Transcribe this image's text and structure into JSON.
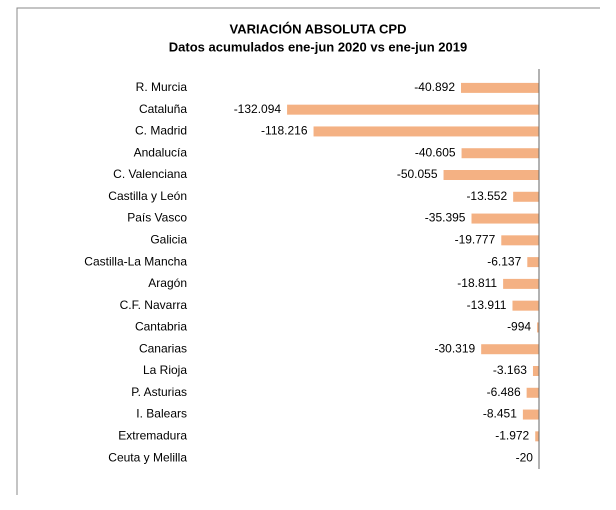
{
  "chart_data": {
    "type": "bar",
    "orientation": "horizontal",
    "title": "VARIACIÓN ABSOLUTA CPD",
    "subtitle": "Datos acumulados ene-jun 2020 vs ene-jun 2019",
    "categories": [
      "R. Murcia",
      "Cataluña",
      "C. Madrid",
      "Andalucía",
      "C. Valenciana",
      "Castilla y León",
      "País Vasco",
      "Galicia",
      "Castilla-La Mancha",
      "Aragón",
      "C.F. Navarra",
      "Cantabria",
      "Canarias",
      "La Rioja",
      "P. Asturias",
      "I. Balears",
      "Extremadura",
      "Ceuta y Melilla"
    ],
    "values": [
      -40892,
      -132094,
      -118216,
      -40605,
      -50055,
      -13552,
      -35395,
      -19777,
      -6137,
      -18811,
      -13911,
      -994,
      -30319,
      -3163,
      -6486,
      -8451,
      -1972,
      -20
    ],
    "value_labels": [
      "-40.892",
      "-132.094",
      "-118.216",
      "-40.605",
      "-50.055",
      "-13.552",
      "-35.395",
      "-19.777",
      "-6.137",
      "-18.811",
      "-13.911",
      "-994",
      "-30.319",
      "-3.163",
      "-6.486",
      "-8.451",
      "-1.972",
      "-20"
    ],
    "color": "#f4b183",
    "xlim": [
      -140000,
      0
    ]
  }
}
